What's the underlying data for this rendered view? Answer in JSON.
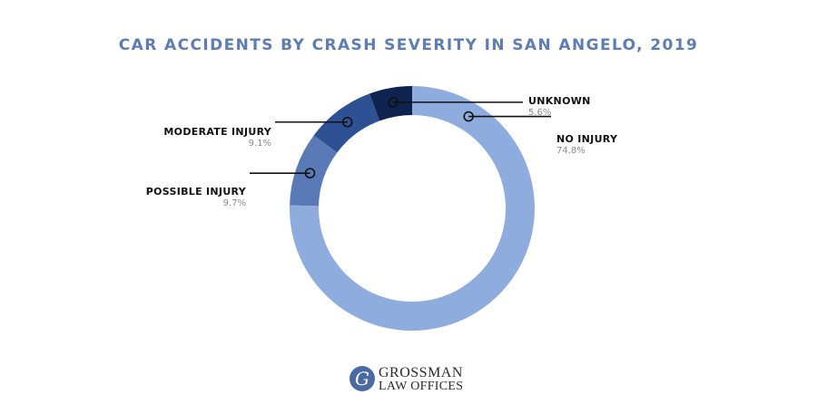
{
  "chart_data": {
    "type": "pie",
    "title": "CAR ACCIDENTS BY CRASH SEVERITY IN SAN ANGELO, 2019",
    "slices": [
      {
        "label": "UNKNOWN",
        "value": 5.6,
        "display": "5.6%",
        "color": "#0f2250"
      },
      {
        "label": "NO INJURY",
        "value": 74.8,
        "display": "74.8%",
        "color": "#8facdf"
      },
      {
        "label": "POSSIBLE INJURY",
        "value": 9.7,
        "display": "9.7%",
        "color": "#5a7ab7"
      },
      {
        "label": "MODERATE INJURY",
        "value": 9.1,
        "display": "9.1%",
        "color": "#2d5193"
      }
    ],
    "legend": "callout-labels"
  },
  "logo": {
    "mark": "G",
    "line1": "GROSSMAN",
    "line2": "LAW OFFICES",
    "color": "#4b6aa3"
  }
}
